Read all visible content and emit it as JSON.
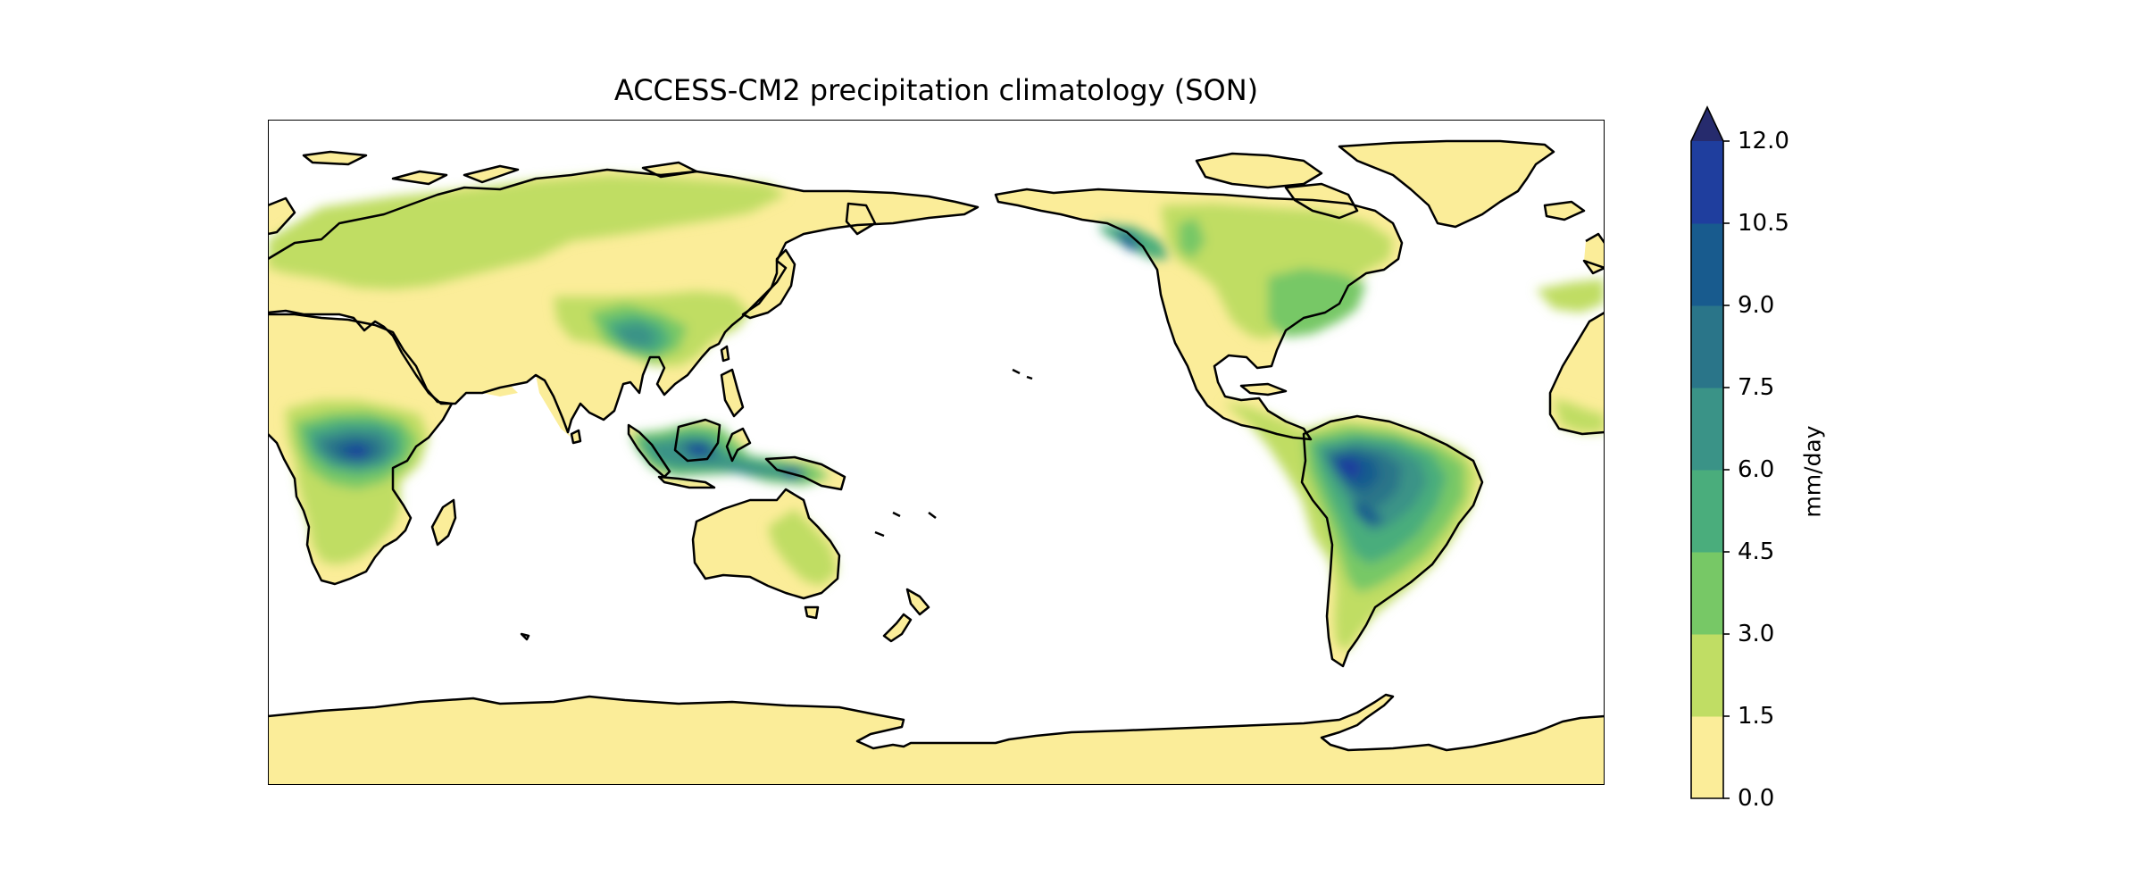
{
  "title": "ACCESS-CM2 precipitation climatology (SON)",
  "colorbar": {
    "label": "mm/day",
    "ticks": [
      "0.0",
      "1.5",
      "3.0",
      "4.5",
      "6.0",
      "7.5",
      "9.0",
      "10.5",
      "12.0"
    ],
    "levels": [
      0,
      1.5,
      3.0,
      4.5,
      6.0,
      7.5,
      9.0,
      10.5,
      12.0
    ],
    "extend": "max",
    "colors": [
      "#fbed99",
      "#c0dd64",
      "#77c866",
      "#4aad7c",
      "#3a9387",
      "#2a7589",
      "#185b8e",
      "#1f3e9e",
      "#262b6d"
    ]
  },
  "map": {
    "projection": "PlateCarree, central longitude 180",
    "coastline_color": "#000000",
    "ocean_color": "#ffffff"
  }
}
